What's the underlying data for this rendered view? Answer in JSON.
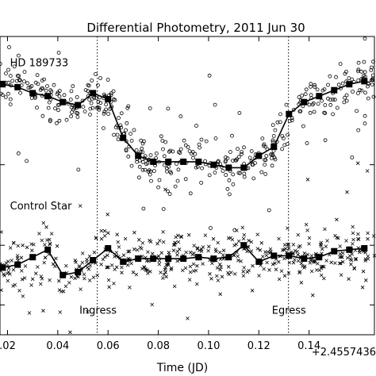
{
  "chart_data": {
    "type": "scatter",
    "title": "Differential Photometry, 2011 Jun 30",
    "xlabel": "Time (JD)",
    "x_offset_label": "+2.4557436",
    "xlim": [
      0.017,
      0.166
    ],
    "ylim": [
      0.0,
      1.0
    ],
    "grid": false,
    "x_ticks": [
      {
        "value": 0.02,
        "label": ".02"
      },
      {
        "value": 0.04,
        "label": "0.04"
      },
      {
        "value": 0.06,
        "label": "0.06"
      },
      {
        "value": 0.08,
        "label": "0.08"
      },
      {
        "value": 0.1,
        "label": "0.10"
      },
      {
        "value": 0.12,
        "label": "0.12"
      },
      {
        "value": 0.14,
        "label": "0.14"
      }
    ],
    "annotations": [
      {
        "text": "HD 189733",
        "x": 0.021,
        "y": 0.9
      },
      {
        "text": "Control Star",
        "x": 0.021,
        "y": 0.42
      },
      {
        "text": "Ingress",
        "x": 0.056,
        "y": 0.07
      },
      {
        "text": "Egress",
        "x": 0.132,
        "y": 0.07
      }
    ],
    "vlines": [
      {
        "name": "Ingress",
        "x": 0.0557
      },
      {
        "name": "Egress",
        "x": 0.1318
      }
    ],
    "series": [
      {
        "name": "HD 189733",
        "marker": "circle",
        "raw": {
          "n": 460,
          "seed": 7,
          "scatter_y": 0.038,
          "outlier_fraction": 0.06,
          "outlier_spread": 0.12
        },
        "binned": {
          "x": [
            0.018,
            0.024,
            0.03,
            0.036,
            0.042,
            0.048,
            0.054,
            0.06,
            0.066,
            0.072,
            0.078,
            0.084,
            0.09,
            0.096,
            0.102,
            0.108,
            0.114,
            0.12,
            0.126,
            0.132,
            0.138,
            0.144,
            0.15,
            0.156,
            0.162
          ],
          "y": [
            0.84,
            0.83,
            0.81,
            0.8,
            0.78,
            0.77,
            0.81,
            0.79,
            0.66,
            0.6,
            0.58,
            0.58,
            0.58,
            0.58,
            0.57,
            0.56,
            0.56,
            0.6,
            0.63,
            0.74,
            0.78,
            0.8,
            0.82,
            0.84,
            0.85
          ]
        }
      },
      {
        "name": "Control Star",
        "marker": "x",
        "raw": {
          "n": 480,
          "seed": 13,
          "scatter_y": 0.045,
          "outlier_fraction": 0.05,
          "outlier_spread": 0.11
        },
        "binned": {
          "x": [
            0.018,
            0.024,
            0.03,
            0.036,
            0.042,
            0.048,
            0.054,
            0.06,
            0.066,
            0.072,
            0.078,
            0.084,
            0.09,
            0.096,
            0.102,
            0.108,
            0.114,
            0.12,
            0.126,
            0.132,
            0.138,
            0.144,
            0.15,
            0.156,
            0.162
          ],
          "y": [
            0.225,
            0.235,
            0.26,
            0.285,
            0.2,
            0.21,
            0.25,
            0.29,
            0.245,
            0.255,
            0.255,
            0.255,
            0.255,
            0.26,
            0.255,
            0.26,
            0.3,
            0.245,
            0.265,
            0.265,
            0.255,
            0.26,
            0.28,
            0.285,
            0.29
          ]
        }
      }
    ]
  }
}
